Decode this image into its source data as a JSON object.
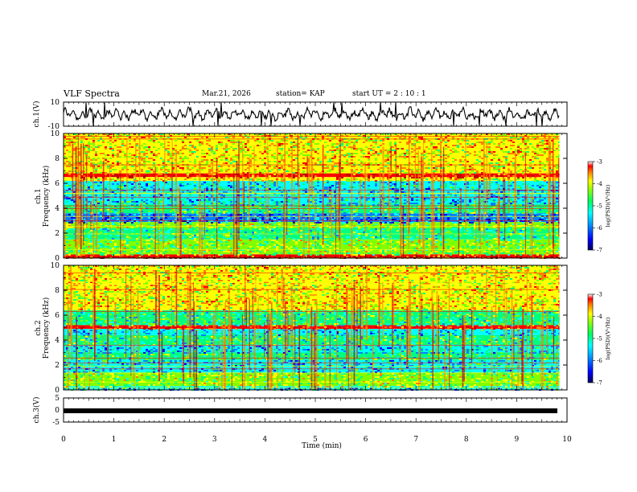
{
  "header": {
    "title": "VLF Spectra",
    "date": "Mar.21, 2026",
    "station": "station= KAP",
    "start": "start  UT =   2 : 10 : 1"
  },
  "colors": {
    "spectrum": [
      "#000080",
      "#0000ff",
      "#0080ff",
      "#00ffff",
      "#00ff80",
      "#80ff00",
      "#ffff00",
      "#ff8000",
      "#ff0000",
      "#c00000"
    ],
    "trace": "#000000"
  },
  "chart_data": [
    {
      "type": "line",
      "name": "ch1-waveform",
      "ylabel": "ch.1(V)",
      "ylim": [
        -10,
        10
      ],
      "yticks": [
        "10",
        "-10"
      ],
      "xlim": [
        0,
        10
      ],
      "note": "noisy VLF waveform, amplitude mostly between -5 and 5 V"
    },
    {
      "type": "heatmap",
      "name": "ch1-spectrogram",
      "ylabel": "ch.1\nFrequency  (kHz)",
      "ylim": [
        0,
        10
      ],
      "yticks": [
        "0",
        "2",
        "4",
        "6",
        "8",
        "10"
      ],
      "xlim": [
        0,
        9.85
      ],
      "bands_khz": [
        {
          "lo": 0.0,
          "hi": 0.3,
          "level": 8
        },
        {
          "lo": 0.3,
          "hi": 1.5,
          "level": 5
        },
        {
          "lo": 1.5,
          "hi": 2.4,
          "level": 4
        },
        {
          "lo": 2.4,
          "hi": 2.9,
          "level": 5
        },
        {
          "lo": 2.9,
          "hi": 3.6,
          "level": 2
        },
        {
          "lo": 3.6,
          "hi": 4.3,
          "level": 4
        },
        {
          "lo": 4.3,
          "hi": 5.2,
          "level": 3
        },
        {
          "lo": 5.2,
          "hi": 6.2,
          "level": 3
        },
        {
          "lo": 6.2,
          "hi": 6.5,
          "level": 6
        },
        {
          "lo": 6.5,
          "hi": 6.8,
          "level": 8
        },
        {
          "lo": 6.8,
          "hi": 8.0,
          "level": 6
        },
        {
          "lo": 8.0,
          "hi": 10.0,
          "level": 6
        }
      ],
      "colorbar": {
        "label": "log(PSD)(V²/Hz)",
        "range": [
          -7,
          -3
        ],
        "ticks": [
          "-3",
          "-4",
          "-5",
          "-6",
          "-7"
        ]
      }
    },
    {
      "type": "heatmap",
      "name": "ch2-spectrogram",
      "ylabel": "ch.2\nFrequency  (kHz)",
      "ylim": [
        0,
        10
      ],
      "yticks": [
        "0",
        "2",
        "4",
        "6",
        "8",
        "10"
      ],
      "xlim": [
        0,
        9.85
      ],
      "bands_khz": [
        {
          "lo": 0.0,
          "hi": 0.3,
          "level": 3
        },
        {
          "lo": 0.3,
          "hi": 1.4,
          "level": 5
        },
        {
          "lo": 1.4,
          "hi": 2.4,
          "level": 3
        },
        {
          "lo": 2.4,
          "hi": 3.0,
          "level": 4
        },
        {
          "lo": 3.0,
          "hi": 3.6,
          "level": 3
        },
        {
          "lo": 3.6,
          "hi": 4.4,
          "level": 4
        },
        {
          "lo": 4.4,
          "hi": 4.9,
          "level": 3
        },
        {
          "lo": 4.9,
          "hi": 5.2,
          "level": 8
        },
        {
          "lo": 5.2,
          "hi": 6.4,
          "level": 4
        },
        {
          "lo": 6.4,
          "hi": 8.5,
          "level": 6
        },
        {
          "lo": 8.5,
          "hi": 10.0,
          "level": 6
        }
      ],
      "colorbar": {
        "label": "log(PSD)(V²/Hz)",
        "range": [
          -7,
          -3
        ],
        "ticks": [
          "-3",
          "-4",
          "-5",
          "-6",
          "-7"
        ]
      }
    },
    {
      "type": "line",
      "name": "ch3-waveform",
      "ylabel": "ch.3(V)",
      "ylim": [
        -5,
        5
      ],
      "yticks": [
        "5",
        "0",
        "-5"
      ],
      "xlim": [
        0,
        10
      ],
      "note": "flat thick trace near -0.3 V"
    }
  ],
  "xaxis": {
    "label": "Time  (min)",
    "range": [
      0,
      10
    ],
    "ticks": [
      "0",
      "1",
      "2",
      "3",
      "4",
      "5",
      "6",
      "7",
      "8",
      "9",
      "10"
    ]
  }
}
